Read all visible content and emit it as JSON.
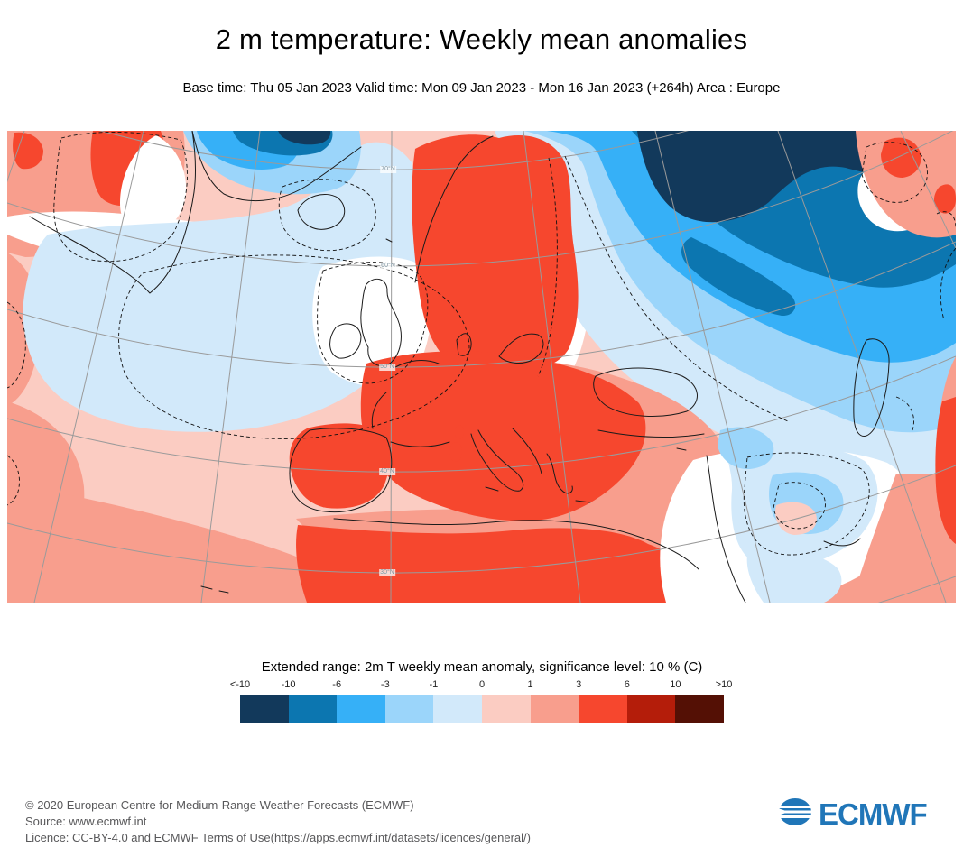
{
  "header": {
    "title": "2 m temperature: Weekly mean anomalies",
    "subtitle": "Base time: Thu 05 Jan 2023 Valid time: Mon 09 Jan 2023 - Mon 16 Jan 2023 (+264h) Area : Europe"
  },
  "map": {
    "latitude_labels": [
      "70°N",
      "60°N",
      "50°N",
      "40°N",
      "30°N"
    ]
  },
  "legend": {
    "title": "Extended range: 2m T weekly mean anomaly, significance level: 10 % (C)",
    "ticks": [
      "<-10",
      "-10",
      "-6",
      "-3",
      "-1",
      "0",
      "1",
      "3",
      "6",
      "10",
      ">10"
    ],
    "colors": [
      "#12395b",
      "#0c76b0",
      "#36b0f7",
      "#9bd5fa",
      "#d2e9fa",
      "#fbccc2",
      "#f89e8d",
      "#f6472e",
      "#b41d0a",
      "#541005"
    ]
  },
  "footer": {
    "line1": "© 2020 European Centre for Medium-Range Weather Forecasts (ECMWF)",
    "line2": "Source: www.ecmwf.int",
    "line3": "Licence: CC-BY-4.0 and ECMWF Terms of Use(https://apps.ecmwf.int/datasets/licences/general/)",
    "logo_text": "ECMWF",
    "logo_color": "#2076b8"
  },
  "chart_data": {
    "type": "heatmap",
    "title": "2 m temperature: Weekly mean anomalies",
    "subtitle": "Base time: Thu 05 Jan 2023 Valid time: Mon 09 Jan 2023 - Mon 16 Jan 2023 (+264h) Area : Europe",
    "legend_title": "Extended range: 2m T weekly mean anomaly, significance level: 10 % (C)",
    "units": "C",
    "scale_tick_labels": [
      "<-10",
      "-10",
      "-6",
      "-3",
      "-1",
      "0",
      "1",
      "3",
      "6",
      "10",
      ">10"
    ],
    "scale_colors": [
      "#12395b",
      "#0c76b0",
      "#36b0f7",
      "#9bd5fa",
      "#d2e9fa",
      "#fbccc2",
      "#f89e8d",
      "#f6472e",
      "#b41d0a",
      "#541005"
    ],
    "graticule_latitudes": [
      "70°N",
      "60°N",
      "50°N",
      "40°N",
      "30°N"
    ],
    "regions": [
      {
        "area": "Scandinavia and Central/Western Europe",
        "anomaly_c": "+3 to +6"
      },
      {
        "area": "Iberian Peninsula and Northwest Africa",
        "anomaly_c": "+3 to +6"
      },
      {
        "area": "Interior Greenland patch",
        "anomaly_c": "+3 to +6"
      },
      {
        "area": "Northeast Europe / Northwest Russia",
        "anomaly_c": "-6 to below -10"
      },
      {
        "area": "Barents region (top right)",
        "anomaly_c": "below -10"
      },
      {
        "area": "North Atlantic mid-ocean",
        "anomaly_c": "-1 to 0"
      },
      {
        "area": "British Isles and North Sea",
        "anomaly_c": "0 to +1"
      },
      {
        "area": "Mediterranean, Balkans and North Africa coast",
        "anomaly_c": "+1 to +3"
      },
      {
        "area": "Middle East / Mesopotamia",
        "anomaly_c": "-1 to 0"
      },
      {
        "area": "Caspian region",
        "anomaly_c": "-3 to -6"
      }
    ]
  }
}
